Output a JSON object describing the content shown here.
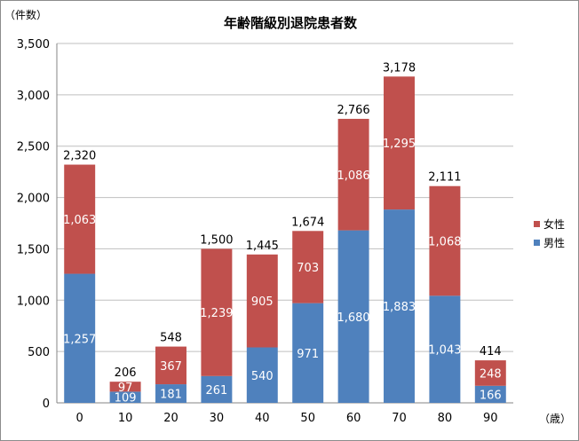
{
  "chart_data": {
    "type": "bar",
    "stacked": true,
    "title": "年齢階級別退院患者数",
    "ylabel": "（件数）",
    "xlabel": "（歳）",
    "ylim": [
      0,
      3500
    ],
    "yticks": [
      0,
      500,
      1000,
      1500,
      2000,
      2500,
      3000,
      3500
    ],
    "ytick_labels": [
      "0",
      "500",
      "1,000",
      "1,500",
      "2,000",
      "2,500",
      "3,000",
      "3,500"
    ],
    "categories": [
      "0",
      "10",
      "20",
      "30",
      "40",
      "50",
      "60",
      "70",
      "80",
      "90"
    ],
    "series": [
      {
        "name": "男性",
        "color": "#4f81bd",
        "values": [
          1257,
          109,
          181,
          261,
          540,
          971,
          1680,
          1883,
          1043,
          166
        ],
        "labels": [
          "1,257",
          "109",
          "181",
          "261",
          "540",
          "971",
          "1,680",
          "1,883",
          "1,043",
          "166"
        ]
      },
      {
        "name": "女性",
        "color": "#c0504d",
        "values": [
          1063,
          97,
          367,
          1239,
          905,
          703,
          1086,
          1295,
          1068,
          248
        ],
        "labels": [
          "1,063",
          "97",
          "367",
          "1,239",
          "905",
          "703",
          "1,086",
          "1,295",
          "1,068",
          "248"
        ]
      }
    ],
    "totals": [
      2320,
      206,
      548,
      1500,
      1445,
      1674,
      2766,
      3178,
      2111,
      414
    ],
    "total_labels": [
      "2,320",
      "206",
      "548",
      "1,500",
      "1,445",
      "1,674",
      "2,766",
      "3,178",
      "2,111",
      "414"
    ],
    "grid": true,
    "legend_position": "right",
    "legend": [
      {
        "name": "女性",
        "color": "#c0504d"
      },
      {
        "name": "男性",
        "color": "#4f81bd"
      }
    ]
  }
}
